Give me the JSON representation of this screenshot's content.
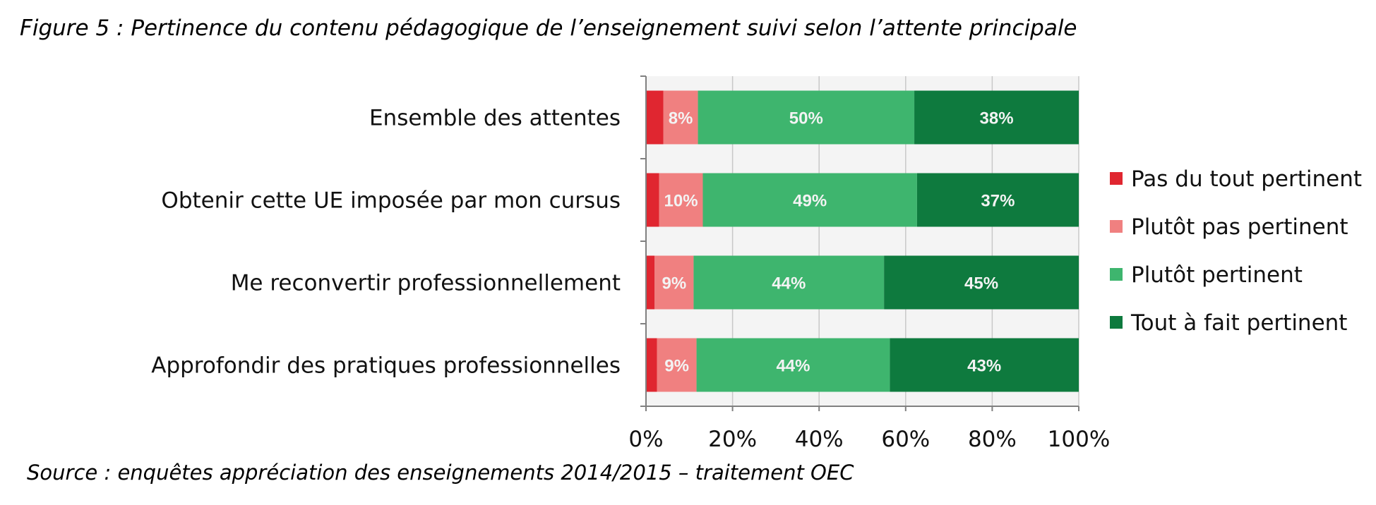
{
  "figure": {
    "title": "Figure 5 : Pertinence du contenu pédagogique de l’enseignement suivi selon l’attente principale",
    "source": "Source : enquêtes appréciation des enseignements 2014/2015 – traitement OEC"
  },
  "chart_data": {
    "type": "bar",
    "orientation": "horizontal",
    "stacked": true,
    "percent_stacked": true,
    "categories": [
      "Ensemble des attentes",
      "Obtenir cette UE imposée par mon cursus",
      "Me reconvertir professionnellement",
      "Approfondir des pratiques professionnelles"
    ],
    "series": [
      {
        "name": "Pas du tout pertinent",
        "color": "#e02630",
        "values": [
          4,
          3,
          2,
          2.5
        ],
        "labels": [
          "",
          "",
          "",
          ""
        ]
      },
      {
        "name": "Plutôt pas pertinent",
        "color": "#f08080",
        "values": [
          8,
          10,
          9,
          9
        ],
        "labels": [
          "8%",
          "10%",
          "9%",
          "9%"
        ]
      },
      {
        "name": "Plutôt pertinent",
        "color": "#3eb56e",
        "values": [
          50,
          49,
          44,
          44
        ],
        "labels": [
          "50%",
          "49%",
          "44%",
          "44%"
        ]
      },
      {
        "name": "Tout à fait pertinent",
        "color": "#0e7a3e",
        "values": [
          38,
          37,
          45,
          43
        ],
        "labels": [
          "38%",
          "37%",
          "45%",
          "43%"
        ]
      }
    ],
    "xlim": [
      0,
      100
    ],
    "xticks": [
      "0%",
      "20%",
      "40%",
      "60%",
      "80%",
      "100%"
    ],
    "grid": true,
    "legend_position": "right"
  }
}
